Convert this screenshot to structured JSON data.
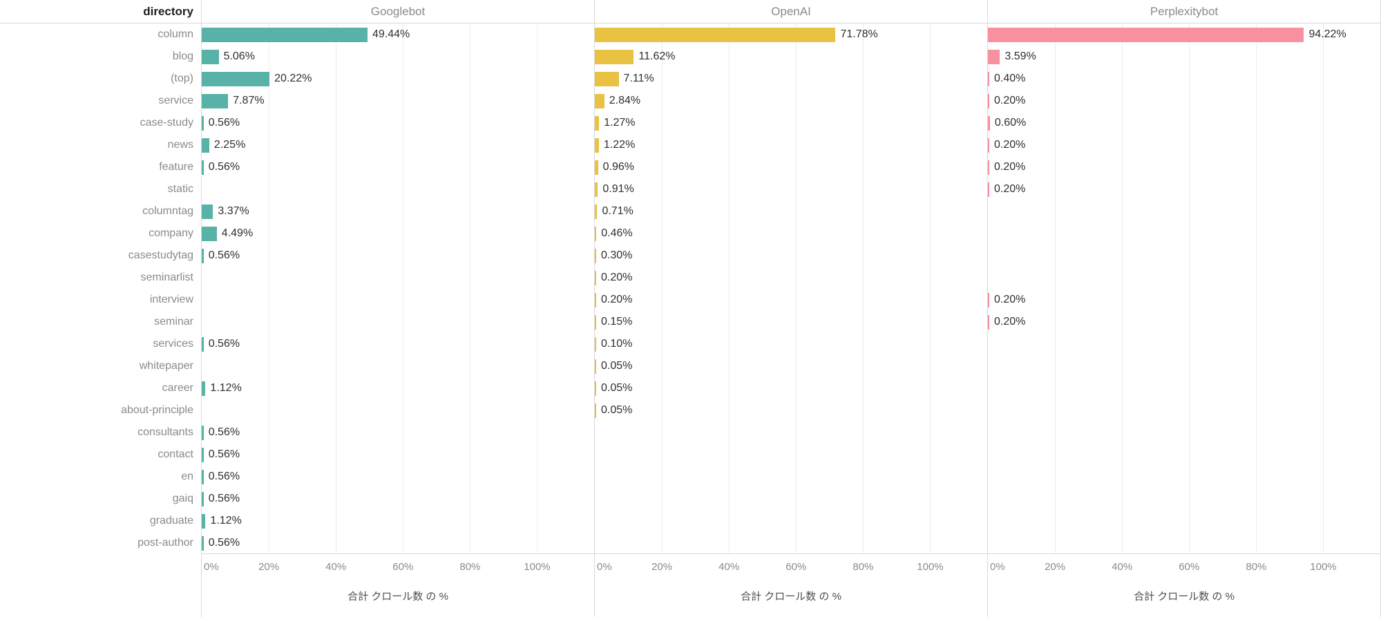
{
  "header": {
    "corner_label": "directory"
  },
  "chart_data": {
    "type": "bar",
    "orientation": "horizontal",
    "title": "",
    "categories": [
      "column",
      "blog",
      "(top)",
      "service",
      "case-study",
      "news",
      "feature",
      "static",
      "columntag",
      "company",
      "casestudytag",
      "seminarlist",
      "interview",
      "seminar",
      "services",
      "whitepaper",
      "career",
      "about-principle",
      "consultants",
      "contact",
      "en",
      "gaiq",
      "graduate",
      "post-author"
    ],
    "series": [
      {
        "name": "Googlebot",
        "color": "#58B2A7",
        "values": [
          49.44,
          5.06,
          20.22,
          7.87,
          0.56,
          2.25,
          0.56,
          null,
          3.37,
          4.49,
          0.56,
          null,
          null,
          null,
          0.56,
          null,
          1.12,
          null,
          0.56,
          0.56,
          0.56,
          0.56,
          1.12,
          0.56
        ]
      },
      {
        "name": "OpenAI",
        "color": "#EAC243",
        "values": [
          71.78,
          11.62,
          7.11,
          2.84,
          1.27,
          1.22,
          0.96,
          0.91,
          0.71,
          0.46,
          0.3,
          0.2,
          0.2,
          0.15,
          0.1,
          0.05,
          0.05,
          0.05,
          null,
          null,
          null,
          null,
          null,
          null
        ]
      },
      {
        "name": "Perplexitybot",
        "color": "#F9909F",
        "values": [
          94.22,
          3.59,
          0.4,
          0.2,
          0.6,
          0.2,
          0.2,
          0.2,
          null,
          null,
          null,
          null,
          0.2,
          0.2,
          null,
          null,
          null,
          null,
          null,
          null,
          null,
          null,
          null,
          null
        ]
      }
    ],
    "xlabel": "合計 クロール数 の %",
    "ticks": [
      0,
      20,
      40,
      60,
      80,
      100
    ],
    "tick_labels": [
      "0%",
      "20%",
      "40%",
      "60%",
      "80%",
      "100%"
    ],
    "xlim": [
      0,
      117
    ],
    "value_suffix": "%",
    "grid": true,
    "legend_position": "none"
  }
}
